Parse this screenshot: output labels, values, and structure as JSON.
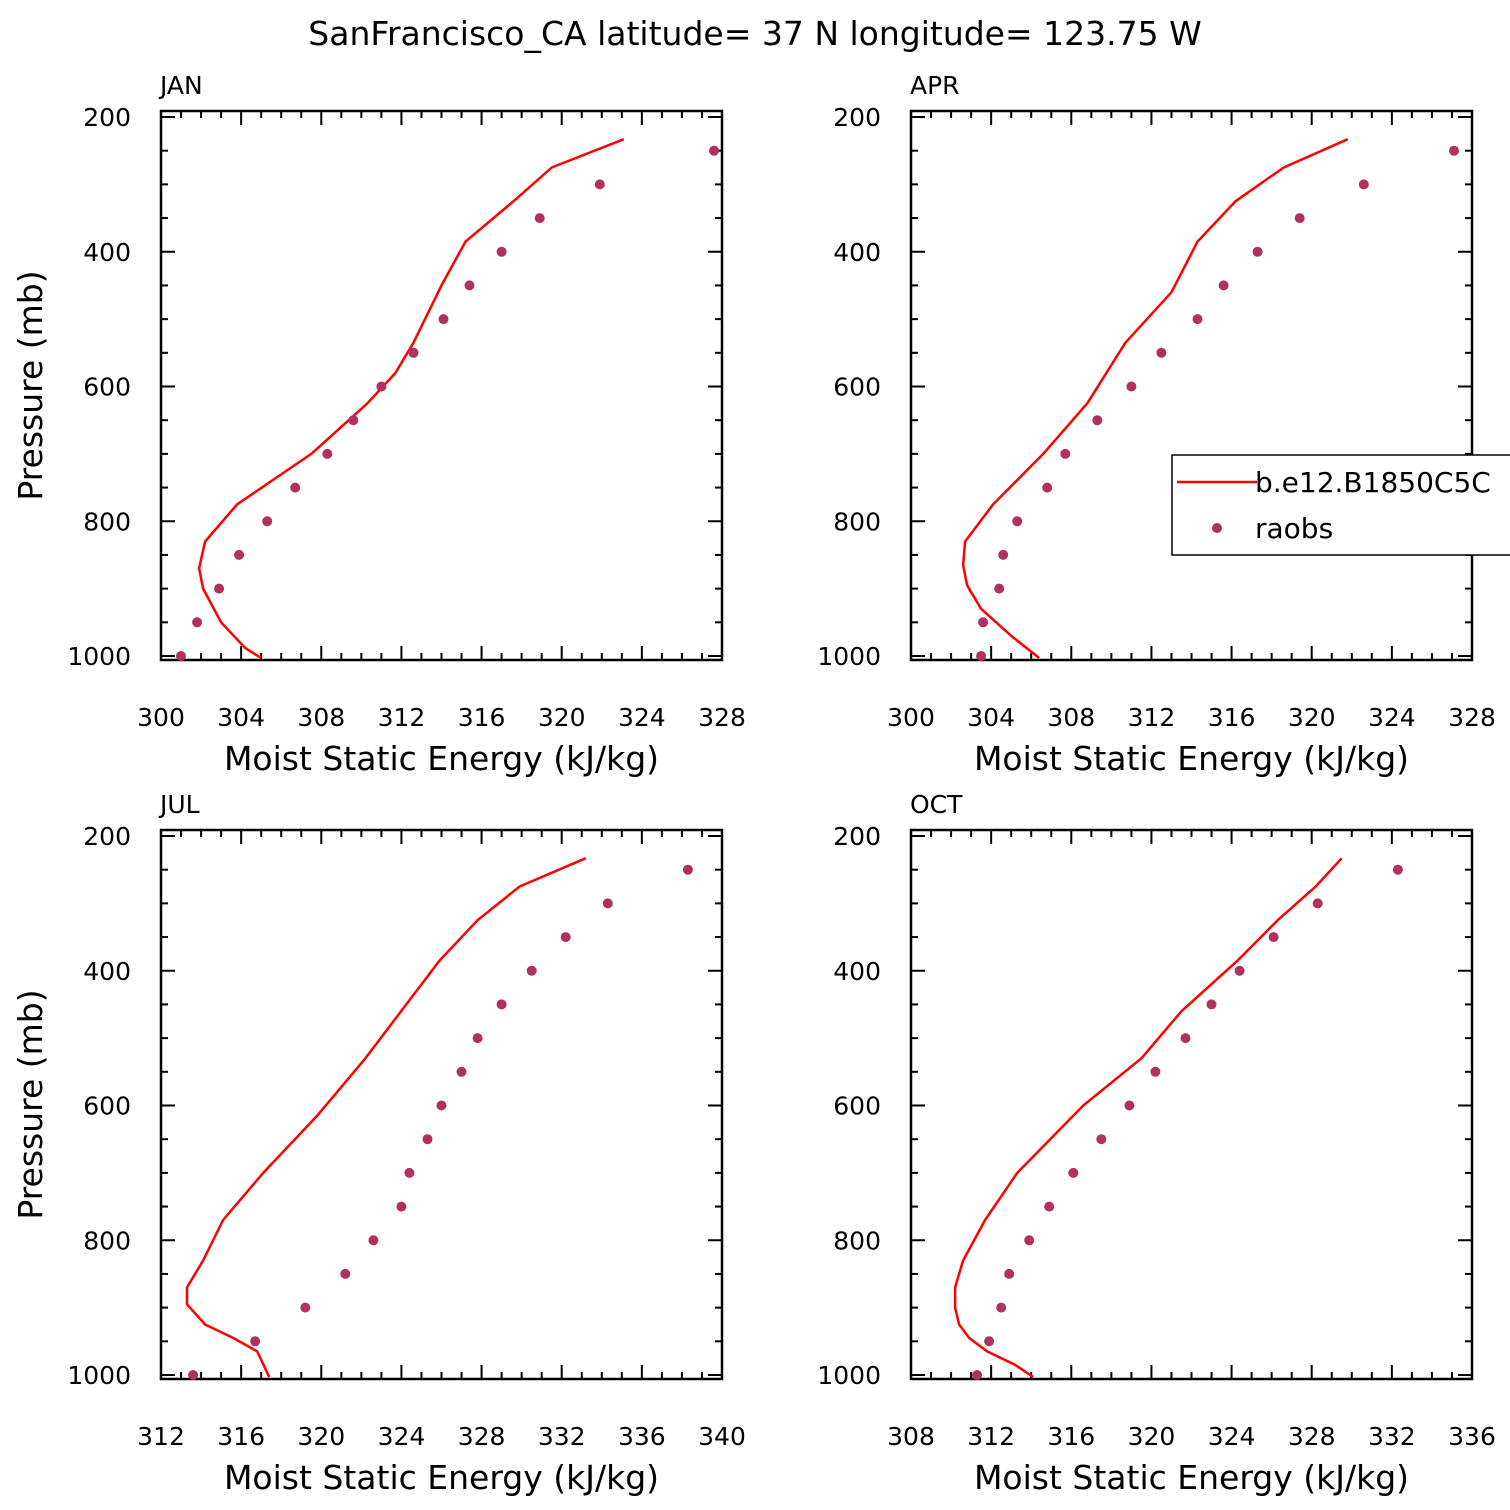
{
  "title": "SanFrancisco_CA  latitude= 37 N longitude= 123.75 W",
  "colors": {
    "model_line": "#ff0000",
    "obs_dots": "#b03060",
    "axes": "#000000"
  },
  "legend": {
    "entries": [
      "b.e12.B1850C5C",
      "raobs"
    ]
  },
  "chart_data": [
    {
      "type": "line",
      "panel": "JAN",
      "xlabel": "Moist Static Energy (kJ/kg)",
      "ylabel": "Pressure (mb)",
      "xlim": [
        300,
        328
      ],
      "ylim": [
        1000,
        200
      ],
      "y_reversed": true,
      "xticks": [
        300,
        304,
        308,
        312,
        316,
        320,
        324,
        328
      ],
      "yticks": [
        200,
        400,
        600,
        800,
        1000
      ],
      "series": [
        {
          "name": "b.e12.B1850C5C",
          "style": "line",
          "points": [
            [
              305.0,
              1003
            ],
            [
              304.2,
              988
            ],
            [
              303.0,
              950
            ],
            [
              302.1,
              900
            ],
            [
              301.9,
              870
            ],
            [
              302.2,
              830
            ],
            [
              303.8,
              775
            ],
            [
              307.5,
              700
            ],
            [
              310.3,
              625
            ],
            [
              311.7,
              580
            ],
            [
              312.6,
              535
            ],
            [
              314.0,
              450
            ],
            [
              315.2,
              385
            ],
            [
              317.6,
              325
            ],
            [
              319.5,
              275
            ],
            [
              323.1,
              233
            ]
          ]
        },
        {
          "name": "raobs",
          "style": "dots",
          "points": [
            [
              301.0,
              1000
            ],
            [
              301.8,
              950
            ],
            [
              302.9,
              900
            ],
            [
              303.9,
              850
            ],
            [
              305.3,
              800
            ],
            [
              306.7,
              750
            ],
            [
              308.3,
              700
            ],
            [
              309.6,
              650
            ],
            [
              311.0,
              600
            ],
            [
              312.6,
              550
            ],
            [
              314.1,
              500
            ],
            [
              315.4,
              450
            ],
            [
              317.0,
              400
            ],
            [
              318.9,
              350
            ],
            [
              321.9,
              300
            ],
            [
              327.6,
              250
            ]
          ]
        }
      ]
    },
    {
      "type": "line",
      "panel": "APR",
      "xlabel": "Moist Static Energy (kJ/kg)",
      "ylabel": "",
      "xlim": [
        300,
        328
      ],
      "ylim": [
        1000,
        200
      ],
      "y_reversed": true,
      "xticks": [
        300,
        304,
        308,
        312,
        316,
        320,
        324,
        328
      ],
      "yticks": [
        200,
        400,
        600,
        800,
        1000
      ],
      "series": [
        {
          "name": "b.e12.B1850C5C",
          "style": "line",
          "points": [
            [
              306.4,
              1003
            ],
            [
              305.0,
              970
            ],
            [
              303.5,
              930
            ],
            [
              302.8,
              895
            ],
            [
              302.6,
              865
            ],
            [
              302.7,
              830
            ],
            [
              304.1,
              775
            ],
            [
              306.6,
              700
            ],
            [
              308.8,
              625
            ],
            [
              310.7,
              535
            ],
            [
              313.0,
              460
            ],
            [
              314.3,
              385
            ],
            [
              316.2,
              325
            ],
            [
              318.6,
              275
            ],
            [
              321.8,
              233
            ]
          ]
        },
        {
          "name": "raobs",
          "style": "dots",
          "points": [
            [
              303.5,
              1000
            ],
            [
              303.6,
              950
            ],
            [
              304.4,
              900
            ],
            [
              304.6,
              850
            ],
            [
              305.3,
              800
            ],
            [
              306.8,
              750
            ],
            [
              307.7,
              700
            ],
            [
              309.3,
              650
            ],
            [
              311.0,
              600
            ],
            [
              312.5,
              550
            ],
            [
              314.3,
              500
            ],
            [
              315.6,
              450
            ],
            [
              317.3,
              400
            ],
            [
              319.4,
              350
            ],
            [
              322.6,
              300
            ],
            [
              327.1,
              250
            ]
          ]
        }
      ]
    },
    {
      "type": "line",
      "panel": "JUL",
      "xlabel": "Moist Static Energy (kJ/kg)",
      "ylabel": "Pressure (mb)",
      "xlim": [
        312,
        340
      ],
      "ylim": [
        1000,
        200
      ],
      "y_reversed": true,
      "xticks": [
        312,
        316,
        320,
        324,
        328,
        332,
        336,
        340
      ],
      "yticks": [
        200,
        400,
        600,
        800,
        1000
      ],
      "series": [
        {
          "name": "b.e12.B1850C5C",
          "style": "line",
          "points": [
            [
              317.4,
              1003
            ],
            [
              316.8,
              965
            ],
            [
              315.6,
              945
            ],
            [
              314.2,
              925
            ],
            [
              313.3,
              895
            ],
            [
              313.3,
              870
            ],
            [
              314.1,
              830
            ],
            [
              315.1,
              770
            ],
            [
              317.1,
              700
            ],
            [
              319.8,
              615
            ],
            [
              322.2,
              530
            ],
            [
              325.9,
              385
            ],
            [
              327.8,
              325
            ],
            [
              329.9,
              275
            ],
            [
              333.2,
              233
            ]
          ]
        },
        {
          "name": "raobs",
          "style": "dots",
          "points": [
            [
              313.6,
              1000
            ],
            [
              316.7,
              950
            ],
            [
              319.2,
              900
            ],
            [
              321.2,
              850
            ],
            [
              322.6,
              800
            ],
            [
              324.0,
              750
            ],
            [
              324.4,
              700
            ],
            [
              325.3,
              650
            ],
            [
              326.0,
              600
            ],
            [
              327.0,
              550
            ],
            [
              327.8,
              500
            ],
            [
              329.0,
              450
            ],
            [
              330.5,
              400
            ],
            [
              332.2,
              350
            ],
            [
              334.3,
              300
            ],
            [
              338.3,
              250
            ]
          ]
        }
      ]
    },
    {
      "type": "line",
      "panel": "OCT",
      "xlabel": "Moist Static Energy (kJ/kg)",
      "ylabel": "",
      "xlim": [
        308,
        336
      ],
      "ylim": [
        1000,
        200
      ],
      "y_reversed": true,
      "xticks": [
        308,
        312,
        316,
        320,
        324,
        328,
        332,
        336
      ],
      "yticks": [
        200,
        400,
        600,
        800,
        1000
      ],
      "series": [
        {
          "name": "b.e12.B1850C5C",
          "style": "line",
          "points": [
            [
              314.1,
              1003
            ],
            [
              313.2,
              985
            ],
            [
              311.8,
              965
            ],
            [
              310.9,
              945
            ],
            [
              310.4,
              925
            ],
            [
              310.2,
              900
            ],
            [
              310.2,
              870
            ],
            [
              310.6,
              830
            ],
            [
              311.7,
              770
            ],
            [
              313.3,
              700
            ],
            [
              316.6,
              600
            ],
            [
              319.5,
              530
            ],
            [
              321.5,
              460
            ],
            [
              324.3,
              385
            ],
            [
              326.3,
              325
            ],
            [
              328.2,
              275
            ],
            [
              329.5,
              233
            ]
          ]
        },
        {
          "name": "raobs",
          "style": "dots",
          "points": [
            [
              311.3,
              1000
            ],
            [
              311.9,
              950
            ],
            [
              312.5,
              900
            ],
            [
              312.9,
              850
            ],
            [
              313.9,
              800
            ],
            [
              314.9,
              750
            ],
            [
              316.1,
              700
            ],
            [
              317.5,
              650
            ],
            [
              318.9,
              600
            ],
            [
              320.2,
              550
            ],
            [
              321.7,
              500
            ],
            [
              323.0,
              450
            ],
            [
              324.4,
              400
            ],
            [
              326.1,
              350
            ],
            [
              328.3,
              300
            ],
            [
              332.3,
              250
            ]
          ]
        }
      ]
    }
  ]
}
